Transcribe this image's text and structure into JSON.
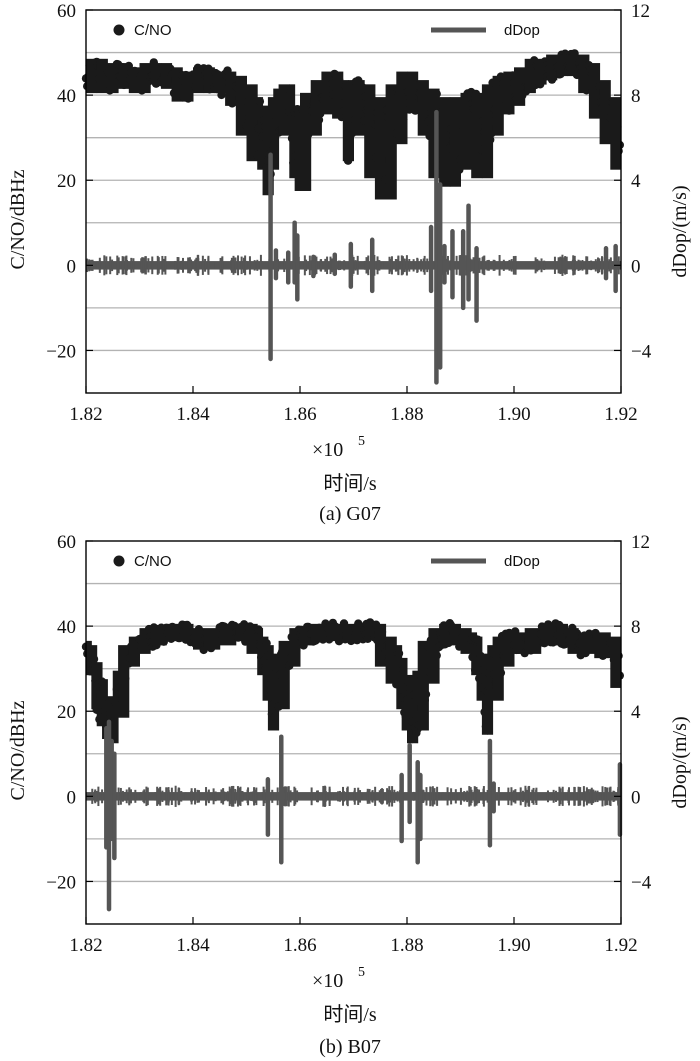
{
  "chart_data": [
    {
      "type": "line",
      "caption": "(a) G07",
      "xlabel": "时间/s",
      "x_multiplier": "×10",
      "x_multiplier_exp": "5",
      "xlim": [
        1.82,
        1.92
      ],
      "x_ticks": [
        "1.82",
        "1.84",
        "1.86",
        "1.88",
        "1.90",
        "1.92"
      ],
      "ylabel_left": "C/NO/dBHz",
      "ylim_left": [
        -30,
        60
      ],
      "y_ticks_left": [
        "−20",
        "0",
        "20",
        "40",
        "60"
      ],
      "ylabel_right": "dDop/(m/s)",
      "ylim_right": [
        -6,
        12
      ],
      "y_ticks_right": [
        "−4",
        "0",
        "4",
        "8",
        "12"
      ],
      "grid": "horizontal",
      "legend": "top",
      "series": [
        {
          "name": "C/NO",
          "axis": "left",
          "color": "#1a1a1a",
          "marker": "circle",
          "x": [
            1.82,
            1.822,
            1.824,
            1.826,
            1.828,
            1.83,
            1.832,
            1.834,
            1.836,
            1.838,
            1.84,
            1.842,
            1.844,
            1.846,
            1.848,
            1.85,
            1.852,
            1.853,
            1.854,
            1.855,
            1.856,
            1.858,
            1.859,
            1.86,
            1.862,
            1.864,
            1.866,
            1.868,
            1.869,
            1.87,
            1.872,
            1.874,
            1.876,
            1.878,
            1.88,
            1.882,
            1.884,
            1.886,
            1.888,
            1.89,
            1.892,
            1.894,
            1.896,
            1.898,
            1.9,
            1.902,
            1.904,
            1.906,
            1.908,
            1.91,
            1.912,
            1.914,
            1.916,
            1.918,
            1.92
          ],
          "y": [
            42,
            45,
            43,
            46,
            44,
            43,
            45,
            46,
            44,
            42,
            44,
            45,
            43,
            44,
            41,
            37,
            33,
            32,
            25,
            34,
            36,
            38,
            26,
            19,
            35,
            40,
            42,
            39,
            35,
            38,
            36,
            28,
            16,
            36,
            41,
            40,
            36,
            28,
            22,
            30,
            33,
            30,
            37,
            40,
            41,
            43,
            45,
            46,
            47,
            49,
            48,
            44,
            40,
            35,
            26
          ],
          "y_min": [
            40,
            42,
            40,
            42,
            41,
            40,
            42,
            43,
            41,
            38,
            40,
            42,
            40,
            40,
            37,
            30,
            24,
            22,
            16,
            22,
            30,
            30,
            20,
            17,
            30,
            35,
            38,
            34,
            24,
            30,
            30,
            20,
            15,
            28,
            36,
            36,
            30,
            20,
            18,
            22,
            28,
            20,
            30,
            35,
            37,
            40,
            42,
            43,
            44,
            46,
            44,
            40,
            34,
            28,
            22
          ],
          "y_max": [
            46,
            49,
            46,
            48,
            47,
            46,
            48,
            48,
            47,
            45,
            46,
            47,
            46,
            46,
            45,
            43,
            40,
            38,
            34,
            40,
            42,
            43,
            38,
            36,
            41,
            44,
            46,
            44,
            42,
            44,
            43,
            40,
            38,
            43,
            46,
            44,
            42,
            40,
            38,
            40,
            41,
            40,
            43,
            45,
            46,
            47,
            49,
            49,
            50,
            50,
            50,
            48,
            44,
            40,
            34
          ]
        },
        {
          "name": "dDop",
          "axis": "right",
          "color": "#555555",
          "baseline": 0,
          "noise": 0.2,
          "spikes_x": [
            1.8545,
            1.8555,
            1.8578,
            1.859,
            1.8595,
            1.8625,
            1.8665,
            1.8695,
            1.8735,
            1.8845,
            1.8855,
            1.8862,
            1.887,
            1.8885,
            1.8905,
            1.8915,
            1.893,
            1.9172,
            1.919
          ],
          "spikes_min": [
            -4.4,
            -0.6,
            -0.8,
            -0.8,
            -1.6,
            -0.5,
            -0.4,
            -1.0,
            -1.2,
            -1.2,
            -5.5,
            -4.8,
            -0.8,
            -1.5,
            -2.0,
            -1.6,
            -2.6,
            -0.6,
            -1.2
          ],
          "spikes_max": [
            5.2,
            0.7,
            0.6,
            2.0,
            1.4,
            0.4,
            0.5,
            1.0,
            1.2,
            1.8,
            7.2,
            3.8,
            0.9,
            1.6,
            1.6,
            2.8,
            0.8,
            0.8,
            0.9
          ]
        }
      ]
    },
    {
      "type": "line",
      "caption": "(b) B07",
      "xlabel": "时间/s",
      "x_multiplier": "×10",
      "x_multiplier_exp": "5",
      "xlim": [
        1.82,
        1.92
      ],
      "x_ticks": [
        "1.82",
        "1.84",
        "1.86",
        "1.88",
        "1.90",
        "1.92"
      ],
      "ylabel_left": "C/NO/dBHz",
      "ylim_left": [
        -30,
        60
      ],
      "y_ticks_left": [
        "−20",
        "0",
        "20",
        "40",
        "60"
      ],
      "ylabel_right": "dDop/(m/s)",
      "ylim_right": [
        -6,
        12
      ],
      "y_ticks_right": [
        "−4",
        "0",
        "4",
        "8",
        "12"
      ],
      "grid": "horizontal",
      "legend": "top",
      "series": [
        {
          "name": "C/NO",
          "axis": "left",
          "color": "#1a1a1a",
          "marker": "circle",
          "x": [
            1.82,
            1.821,
            1.822,
            1.823,
            1.824,
            1.825,
            1.826,
            1.828,
            1.83,
            1.832,
            1.835,
            1.838,
            1.84,
            1.842,
            1.845,
            1.848,
            1.85,
            1.852,
            1.853,
            1.854,
            1.855,
            1.856,
            1.858,
            1.86,
            1.862,
            1.865,
            1.868,
            1.87,
            1.872,
            1.874,
            1.876,
            1.878,
            1.879,
            1.88,
            1.881,
            1.882,
            1.884,
            1.886,
            1.888,
            1.89,
            1.892,
            1.893,
            1.894,
            1.895,
            1.896,
            1.898,
            1.9,
            1.902,
            1.905,
            1.908,
            1.91,
            1.912,
            1.915,
            1.918,
            1.92
          ],
          "y": [
            34,
            32,
            25,
            20,
            16,
            14,
            22,
            33,
            36,
            37,
            38,
            39,
            38,
            36,
            37,
            39,
            38,
            36,
            32,
            28,
            18,
            25,
            33,
            37,
            38,
            39,
            38,
            38,
            39,
            39,
            33,
            30,
            25,
            18,
            14,
            18,
            30,
            37,
            38,
            37,
            35,
            32,
            28,
            16,
            28,
            33,
            36,
            35,
            37,
            38,
            37,
            35,
            36,
            35,
            28
          ],
          "y_min": [
            32,
            28,
            20,
            16,
            13,
            12,
            18,
            30,
            33,
            35,
            36,
            37,
            36,
            34,
            35,
            37,
            36,
            33,
            28,
            22,
            15,
            20,
            30,
            35,
            36,
            37,
            36,
            36,
            37,
            37,
            30,
            26,
            20,
            15,
            12,
            15,
            26,
            35,
            36,
            35,
            33,
            28,
            22,
            14,
            22,
            30,
            34,
            33,
            35,
            36,
            35,
            33,
            34,
            32,
            25
          ],
          "y_max": [
            37,
            36,
            32,
            28,
            24,
            22,
            30,
            36,
            38,
            40,
            40,
            41,
            40,
            39,
            40,
            41,
            41,
            40,
            38,
            36,
            30,
            34,
            37,
            40,
            40,
            41,
            41,
            41,
            41,
            41,
            38,
            36,
            33,
            29,
            26,
            30,
            37,
            40,
            41,
            40,
            39,
            38,
            34,
            28,
            36,
            38,
            39,
            39,
            40,
            41,
            40,
            39,
            39,
            38,
            34
          ]
        },
        {
          "name": "dDop",
          "axis": "right",
          "color": "#555555",
          "baseline": 0,
          "noise": 0.2,
          "spikes_x": [
            1.8238,
            1.8243,
            1.8248,
            1.8253,
            1.854,
            1.8565,
            1.879,
            1.8805,
            1.882,
            1.8825,
            1.8955,
            1.8962,
            1.9198
          ],
          "spikes_min": [
            -2.4,
            -5.3,
            -2.0,
            -2.9,
            -1.8,
            -3.1,
            -2.1,
            -1.2,
            -3.1,
            -2.0,
            -2.3,
            -0.7,
            -1.8
          ],
          "spikes_max": [
            3.2,
            3.5,
            2.6,
            2.0,
            0.8,
            2.8,
            1.0,
            2.4,
            1.6,
            1.0,
            2.6,
            0.6,
            1.5
          ]
        }
      ]
    }
  ]
}
